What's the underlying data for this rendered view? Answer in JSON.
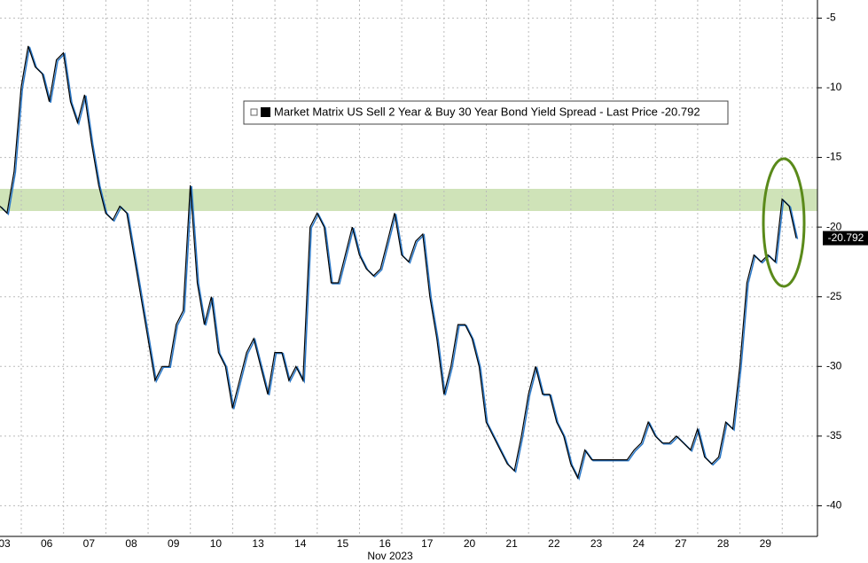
{
  "chart_data": {
    "type": "line",
    "categories": [
      "03",
      null,
      null,
      null,
      null,
      null,
      "06",
      null,
      null,
      null,
      null,
      null,
      "07",
      null,
      null,
      null,
      null,
      null,
      "08",
      null,
      null,
      null,
      null,
      null,
      "09",
      null,
      null,
      null,
      null,
      null,
      "10",
      null,
      null,
      null,
      null,
      null,
      "13",
      null,
      null,
      null,
      null,
      null,
      "14",
      null,
      null,
      null,
      null,
      null,
      "15",
      null,
      null,
      null,
      null,
      null,
      "16",
      null,
      null,
      null,
      null,
      null,
      "17",
      null,
      null,
      null,
      null,
      null,
      "20",
      null,
      null,
      null,
      null,
      null,
      "21",
      null,
      null,
      null,
      null,
      null,
      "22",
      null,
      null,
      null,
      null,
      null,
      "23",
      null,
      null,
      null,
      null,
      null,
      "24",
      null,
      null,
      null,
      null,
      null,
      "27",
      null,
      null,
      null,
      null,
      null,
      "28",
      null,
      null,
      null,
      null,
      null,
      "29",
      null,
      null,
      null,
      null,
      null
    ],
    "x_label": "Nov 2023",
    "series": [
      {
        "name": "Market Matrix US Sell 2 Year & Buy 30 Year Bond Yield Spread - Last Price -20.792",
        "color": "#000000",
        "values": [
          -18.5,
          -19,
          -16,
          -10,
          -7,
          -8.5,
          -9,
          -11,
          -8,
          -7.5,
          -11,
          -12.5,
          -10.5,
          -14,
          -17,
          -19,
          -19.5,
          -18.5,
          -19,
          -22,
          -25,
          -28,
          -31,
          -30,
          -30,
          -27,
          -26,
          -17,
          -24,
          -27,
          -25,
          -29,
          -30,
          -33,
          -31,
          -29,
          -28,
          -30,
          -32,
          -29,
          -29,
          -31,
          -30,
          -31,
          -20,
          -19,
          -20,
          -24,
          -24,
          -22,
          -20,
          -22,
          -23,
          -23.5,
          -23,
          -21,
          -19,
          -22,
          -22.5,
          -21,
          -20.5,
          -25,
          -28,
          -32,
          -30,
          -27,
          -27,
          -28,
          -30,
          -34,
          -35,
          -36,
          -37,
          -37.5,
          -35,
          -32,
          -30,
          -32,
          -32,
          -34,
          -35,
          -37,
          -38,
          -36,
          -36.7,
          -36.7,
          -36.7,
          -36.7,
          -36.7,
          -36.7,
          -36,
          -35.5,
          -34,
          -35,
          -35.5,
          -35.5,
          -35,
          -35.5,
          -36,
          -34.5,
          -36.5,
          -37,
          -36.5,
          -34,
          -34.5,
          -30,
          -24,
          -22,
          -22.5,
          -22,
          -22.5,
          -18,
          -18.5,
          -20.792
        ]
      }
    ],
    "ylim": [
      -42.2,
      -3.7
    ],
    "yticks": [
      -5,
      -10,
      -15,
      -20,
      -25,
      -30,
      -35,
      -40
    ],
    "grid": true
  }
}
